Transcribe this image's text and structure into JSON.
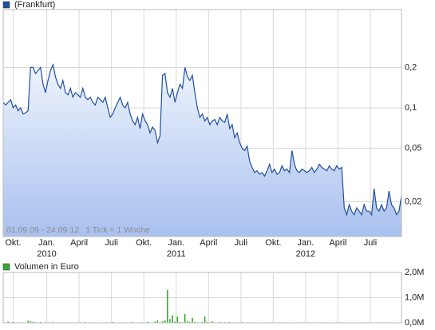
{
  "chart_data": [
    {
      "type": "area",
      "legend": "(Frankfurt)",
      "color": "#1f4fa0",
      "fill": "#c9d8f5",
      "date_range": "01.09.09 - 24.09.12",
      "tick_note": "1 Tick = 1 Woche",
      "log_scale": true,
      "grid": true,
      "xlim": [
        0,
        160
      ],
      "xticks": [
        {
          "value": 4,
          "label": "Okt."
        },
        {
          "value": 17.5,
          "label": "Jan."
        },
        {
          "value": 30.5,
          "label": "April"
        },
        {
          "value": 43.5,
          "label": "Juli"
        },
        {
          "value": 56.5,
          "label": "Okt."
        },
        {
          "value": 69.5,
          "label": "Jan."
        },
        {
          "value": 82.5,
          "label": "April"
        },
        {
          "value": 95.5,
          "label": "Juli"
        },
        {
          "value": 108.5,
          "label": "Okt."
        },
        {
          "value": 121.5,
          "label": "Jan."
        },
        {
          "value": 134.5,
          "label": "April"
        },
        {
          "value": 147.5,
          "label": "Juli"
        }
      ],
      "year_labels": [
        {
          "value": 17.5,
          "label": "2010"
        },
        {
          "value": 69.5,
          "label": "2011"
        },
        {
          "value": 121.5,
          "label": "2012"
        }
      ],
      "ylim": [
        0.011,
        0.54
      ],
      "yticks": [
        {
          "value": 0.02,
          "label": "0,02"
        },
        {
          "value": 0.05,
          "label": "0,05"
        },
        {
          "value": 0.1,
          "label": "0,1"
        },
        {
          "value": 0.2,
          "label": "0,2"
        }
      ],
      "values": [
        0.11,
        0.105,
        0.11,
        0.115,
        0.1,
        0.105,
        0.095,
        0.1,
        0.09,
        0.092,
        0.095,
        0.2,
        0.2,
        0.18,
        0.19,
        0.2,
        0.15,
        0.13,
        0.16,
        0.19,
        0.21,
        0.17,
        0.15,
        0.14,
        0.16,
        0.13,
        0.125,
        0.14,
        0.12,
        0.13,
        0.125,
        0.12,
        0.14,
        0.12,
        0.115,
        0.12,
        0.11,
        0.105,
        0.12,
        0.115,
        0.11,
        0.12,
        0.1,
        0.085,
        0.09,
        0.1,
        0.11,
        0.12,
        0.105,
        0.1,
        0.11,
        0.09,
        0.08,
        0.075,
        0.085,
        0.07,
        0.09,
        0.08,
        0.075,
        0.065,
        0.072,
        0.068,
        0.055,
        0.062,
        0.175,
        0.18,
        0.13,
        0.12,
        0.14,
        0.11,
        0.13,
        0.15,
        0.14,
        0.2,
        0.17,
        0.16,
        0.175,
        0.13,
        0.1,
        0.085,
        0.09,
        0.08,
        0.085,
        0.075,
        0.08,
        0.082,
        0.075,
        0.085,
        0.08,
        0.078,
        0.09,
        0.07,
        0.075,
        0.06,
        0.065,
        0.055,
        0.05,
        0.048,
        0.052,
        0.04,
        0.036,
        0.033,
        0.034,
        0.032,
        0.033,
        0.031,
        0.034,
        0.038,
        0.033,
        0.035,
        0.032,
        0.033,
        0.037,
        0.034,
        0.035,
        0.033,
        0.048,
        0.038,
        0.034,
        0.033,
        0.035,
        0.034,
        0.033,
        0.034,
        0.036,
        0.033,
        0.035,
        0.038,
        0.036,
        0.035,
        0.034,
        0.037,
        0.035,
        0.034,
        0.037,
        0.035,
        0.036,
        0.018,
        0.016,
        0.019,
        0.017,
        0.016,
        0.018,
        0.017,
        0.016,
        0.019,
        0.017,
        0.017,
        0.016,
        0.025,
        0.018,
        0.017,
        0.019,
        0.017,
        0.018,
        0.024,
        0.019,
        0.018,
        0.016,
        0.017,
        0.022
      ]
    },
    {
      "type": "bar",
      "legend": "Volumen in Euro",
      "color": "#33aa33",
      "grid": true,
      "xlim": [
        0,
        160
      ],
      "xticks": [
        4,
        17.5,
        30.5,
        43.5,
        56.5,
        69.5,
        82.5,
        95.5,
        108.5,
        121.5,
        134.5,
        147.5
      ],
      "ylim": [
        0,
        2000000
      ],
      "yticks": [
        {
          "value": 0,
          "label": "0,0M"
        },
        {
          "value": 1000000,
          "label": "1,0M"
        },
        {
          "value": 2000000,
          "label": "2,0M"
        }
      ],
      "values": [
        20000,
        0,
        50000,
        0,
        30000,
        0,
        0,
        20000,
        0,
        0,
        80000,
        60000,
        40000,
        20000,
        0,
        30000,
        0,
        20000,
        0,
        10000,
        30000,
        0,
        20000,
        0,
        0,
        20000,
        0,
        0,
        10000,
        0,
        20000,
        0,
        0,
        30000,
        0,
        0,
        20000,
        0,
        0,
        10000,
        0,
        20000,
        0,
        0,
        30000,
        0,
        0,
        20000,
        0,
        0,
        20000,
        0,
        30000,
        0,
        0,
        20000,
        0,
        0,
        40000,
        0,
        0,
        50000,
        100000,
        20000,
        60000,
        100000,
        1300000,
        150000,
        300000,
        50000,
        250000,
        30000,
        20000,
        350000,
        60000,
        40000,
        200000,
        30000,
        20000,
        0,
        40000,
        250000,
        30000,
        0,
        60000,
        20000,
        0,
        30000,
        0,
        20000,
        0,
        30000,
        0,
        20000,
        0,
        0,
        30000,
        0,
        20000,
        0,
        0,
        20000,
        0,
        0,
        10000,
        0,
        20000,
        0,
        0,
        10000,
        0,
        0,
        20000,
        0,
        0,
        10000,
        0,
        0,
        20000,
        0,
        0,
        10000,
        0,
        0,
        20000,
        0,
        0,
        10000,
        0,
        0,
        20000,
        0,
        0,
        10000,
        0,
        0,
        20000,
        0,
        0,
        10000,
        0,
        0,
        10000,
        0,
        20000,
        0,
        0,
        10000,
        0,
        0,
        20000,
        0,
        0,
        10000,
        0,
        0,
        20000,
        0,
        10000,
        0,
        20000
      ]
    }
  ]
}
